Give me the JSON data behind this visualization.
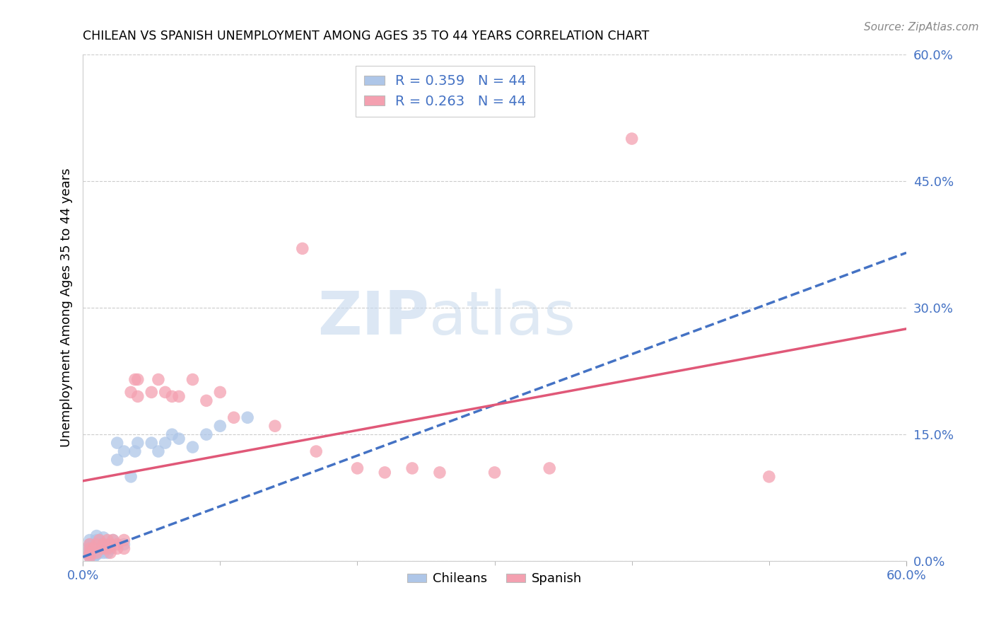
{
  "title": "CHILEAN VS SPANISH UNEMPLOYMENT AMONG AGES 35 TO 44 YEARS CORRELATION CHART",
  "source": "Source: ZipAtlas.com",
  "ylabel": "Unemployment Among Ages 35 to 44 years",
  "xlim": [
    0.0,
    0.6
  ],
  "ylim": [
    0.0,
    0.6
  ],
  "ytick_labels": [
    "0.0%",
    "15.0%",
    "30.0%",
    "45.0%",
    "60.0%"
  ],
  "ytick_vals": [
    0.0,
    0.15,
    0.3,
    0.45,
    0.6
  ],
  "legend_line1": "R = 0.359   N = 44",
  "legend_line2": "R = 0.263   N = 44",
  "legend_label1": "Chileans",
  "legend_label2": "Spanish",
  "blue_color": "#aec6e8",
  "pink_color": "#f4a0b0",
  "blue_line_color": "#4472c4",
  "pink_line_color": "#e05878",
  "text_color": "#4472c4",
  "watermark_zip": "ZIP",
  "watermark_atlas": "atlas",
  "chilean_x": [
    0.005,
    0.005,
    0.005,
    0.005,
    0.005,
    0.005,
    0.005,
    0.005,
    0.008,
    0.008,
    0.008,
    0.008,
    0.01,
    0.01,
    0.01,
    0.01,
    0.01,
    0.012,
    0.012,
    0.015,
    0.015,
    0.015,
    0.015,
    0.017,
    0.018,
    0.02,
    0.02,
    0.022,
    0.025,
    0.025,
    0.03,
    0.03,
    0.035,
    0.038,
    0.04,
    0.05,
    0.055,
    0.06,
    0.065,
    0.07,
    0.08,
    0.09,
    0.1,
    0.12
  ],
  "chilean_y": [
    0.005,
    0.008,
    0.01,
    0.012,
    0.015,
    0.018,
    0.02,
    0.025,
    0.005,
    0.01,
    0.015,
    0.02,
    0.008,
    0.012,
    0.018,
    0.025,
    0.03,
    0.01,
    0.022,
    0.01,
    0.015,
    0.02,
    0.028,
    0.018,
    0.01,
    0.015,
    0.02,
    0.025,
    0.12,
    0.14,
    0.02,
    0.13,
    0.1,
    0.13,
    0.14,
    0.14,
    0.13,
    0.14,
    0.15,
    0.145,
    0.135,
    0.15,
    0.16,
    0.17
  ],
  "spanish_x": [
    0.005,
    0.005,
    0.005,
    0.005,
    0.005,
    0.008,
    0.01,
    0.01,
    0.012,
    0.015,
    0.015,
    0.018,
    0.018,
    0.02,
    0.02,
    0.022,
    0.025,
    0.025,
    0.03,
    0.03,
    0.035,
    0.038,
    0.04,
    0.04,
    0.05,
    0.055,
    0.06,
    0.065,
    0.07,
    0.08,
    0.09,
    0.1,
    0.11,
    0.14,
    0.16,
    0.17,
    0.2,
    0.22,
    0.24,
    0.26,
    0.3,
    0.34,
    0.4,
    0.5
  ],
  "spanish_y": [
    0.005,
    0.01,
    0.015,
    0.02,
    0.008,
    0.015,
    0.01,
    0.02,
    0.025,
    0.015,
    0.02,
    0.015,
    0.025,
    0.01,
    0.02,
    0.025,
    0.015,
    0.02,
    0.015,
    0.025,
    0.2,
    0.215,
    0.195,
    0.215,
    0.2,
    0.215,
    0.2,
    0.195,
    0.195,
    0.215,
    0.19,
    0.2,
    0.17,
    0.16,
    0.37,
    0.13,
    0.11,
    0.105,
    0.11,
    0.105,
    0.105,
    0.11,
    0.5,
    0.1
  ],
  "blue_trend_x": [
    0.0,
    0.6
  ],
  "blue_trend_y": [
    0.005,
    0.365
  ],
  "pink_trend_x": [
    0.0,
    0.6
  ],
  "pink_trend_y": [
    0.095,
    0.275
  ],
  "grid_color": "#cccccc",
  "background_color": "#ffffff"
}
